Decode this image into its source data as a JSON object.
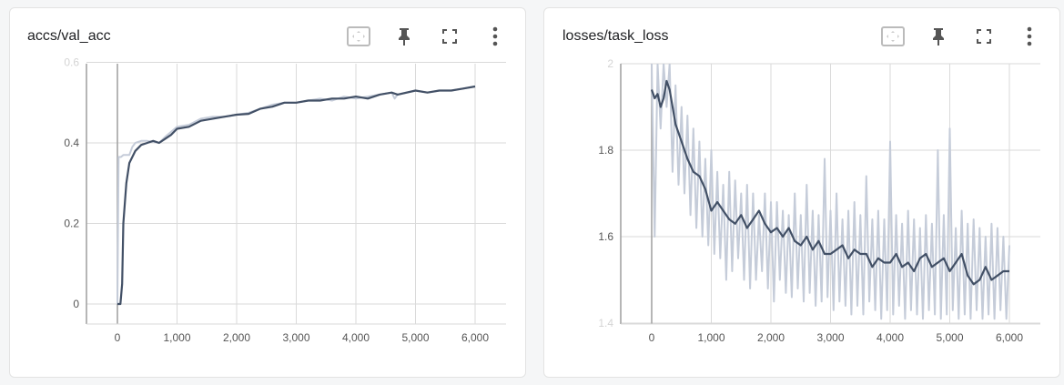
{
  "cards": [
    {
      "title": "accs/val_acc"
    },
    {
      "title": "losses/task_loss"
    }
  ],
  "icons": [
    "fit-domain-icon",
    "pin-icon",
    "fullscreen-icon",
    "more-vert-icon"
  ],
  "colors": {
    "smoothed": "#425066",
    "raw": "#c5ccd9",
    "grid": "#dadada",
    "axis": "#9e9e9e"
  },
  "chart_data": [
    {
      "type": "line",
      "title": "accs/val_acc",
      "xlim": [
        -520,
        6500
      ],
      "ylim": [
        -0.05,
        0.6
      ],
      "xticks": [
        0,
        1000,
        2000,
        3000,
        4000,
        5000,
        6000
      ],
      "xtick_labels": [
        "0",
        "1,000",
        "2,000",
        "3,000",
        "4,000",
        "5,000",
        "6,000"
      ],
      "yticks": [
        0,
        0.2,
        0.4,
        0.6
      ],
      "ytick_labels": [
        "0",
        "0.2",
        "0.4",
        "0.6"
      ],
      "series": [
        {
          "name": "raw",
          "x": [
            0,
            20,
            40,
            60,
            100,
            200,
            250,
            300,
            400,
            500,
            700,
            800,
            1000,
            1200,
            1400,
            1600,
            1800,
            2000,
            2200,
            2400,
            2600,
            2800,
            3000,
            3200,
            3400,
            3600,
            3800,
            4000,
            4200,
            4400,
            4600,
            4650,
            4700,
            5000,
            5200,
            5400,
            5600,
            5800,
            6000
          ],
          "y": [
            0,
            0.365,
            0.365,
            0.365,
            0.37,
            0.37,
            0.39,
            0.4,
            0.405,
            0.405,
            0.4,
            0.415,
            0.44,
            0.445,
            0.46,
            0.465,
            0.465,
            0.47,
            0.475,
            0.485,
            0.495,
            0.5,
            0.5,
            0.505,
            0.51,
            0.505,
            0.515,
            0.51,
            0.515,
            0.52,
            0.525,
            0.51,
            0.52,
            0.53,
            0.525,
            0.53,
            0.53,
            0.535,
            0.54
          ]
        },
        {
          "name": "smoothed",
          "x": [
            0,
            50,
            80,
            100,
            150,
            200,
            300,
            400,
            500,
            600,
            700,
            800,
            900,
            1000,
            1200,
            1400,
            1600,
            1800,
            2000,
            2200,
            2400,
            2600,
            2800,
            3000,
            3200,
            3400,
            3600,
            3800,
            4000,
            4200,
            4400,
            4600,
            4700,
            5000,
            5200,
            5400,
            5600,
            5800,
            6000
          ],
          "y": [
            0,
            0,
            0.05,
            0.2,
            0.3,
            0.35,
            0.38,
            0.395,
            0.4,
            0.405,
            0.4,
            0.41,
            0.42,
            0.435,
            0.44,
            0.455,
            0.46,
            0.465,
            0.47,
            0.472,
            0.485,
            0.49,
            0.5,
            0.5,
            0.505,
            0.505,
            0.51,
            0.51,
            0.515,
            0.51,
            0.52,
            0.525,
            0.52,
            0.53,
            0.525,
            0.53,
            0.53,
            0.535,
            0.54
          ]
        }
      ]
    },
    {
      "type": "line",
      "title": "losses/task_loss",
      "xlim": [
        -520,
        6500
      ],
      "ylim": [
        1.41,
        2.0
      ],
      "xticks": [
        0,
        1000,
        2000,
        3000,
        4000,
        5000,
        6000
      ],
      "xtick_labels": [
        "0",
        "1,000",
        "2,000",
        "3,000",
        "4,000",
        "5,000",
        "6,000"
      ],
      "yticks": [
        1.4,
        1.6,
        1.8,
        2.0
      ],
      "ytick_labels": [
        "1.4",
        "1.6",
        "1.8",
        "2"
      ],
      "series": [
        {
          "name": "raw",
          "x_step": 50,
          "y": [
            2.0,
            1.6,
            2.0,
            1.85,
            2.0,
            1.9,
            2.0,
            1.75,
            1.95,
            1.72,
            1.9,
            1.7,
            1.88,
            1.65,
            1.85,
            1.62,
            1.82,
            1.6,
            1.78,
            1.58,
            1.8,
            1.56,
            1.75,
            1.55,
            1.72,
            1.5,
            1.75,
            1.52,
            1.73,
            1.55,
            1.7,
            1.5,
            1.72,
            1.48,
            1.7,
            1.5,
            1.65,
            1.52,
            1.7,
            1.48,
            1.68,
            1.45,
            1.68,
            1.5,
            1.66,
            1.47,
            1.65,
            1.46,
            1.7,
            1.48,
            1.65,
            1.45,
            1.72,
            1.47,
            1.66,
            1.44,
            1.65,
            1.45,
            1.78,
            1.46,
            1.66,
            1.43,
            1.7,
            1.45,
            1.64,
            1.44,
            1.66,
            1.42,
            1.68,
            1.44,
            1.65,
            1.42,
            1.74,
            1.45,
            1.64,
            1.43,
            1.66,
            1.41,
            1.64,
            1.43,
            1.82,
            1.42,
            1.65,
            1.44,
            1.63,
            1.41,
            1.66,
            1.43,
            1.64,
            1.42,
            1.62,
            1.41,
            1.65,
            1.43,
            1.63,
            1.42,
            1.8,
            1.41,
            1.65,
            1.42,
            1.85,
            1.43,
            1.62,
            1.41,
            1.66,
            1.42,
            1.63,
            1.41,
            1.64,
            1.43,
            1.62,
            1.41,
            1.6,
            1.42,
            1.63,
            1.41,
            1.62,
            1.43,
            1.6,
            1.41,
            1.58
          ]
        },
        {
          "name": "smoothed",
          "x": [
            0,
            50,
            100,
            150,
            200,
            250,
            300,
            400,
            500,
            600,
            700,
            800,
            900,
            1000,
            1100,
            1200,
            1300,
            1400,
            1500,
            1600,
            1700,
            1800,
            1900,
            2000,
            2100,
            2200,
            2300,
            2400,
            2500,
            2600,
            2700,
            2800,
            2900,
            3000,
            3100,
            3200,
            3300,
            3400,
            3500,
            3600,
            3700,
            3800,
            3900,
            4000,
            4100,
            4200,
            4300,
            4400,
            4500,
            4600,
            4700,
            4800,
            4900,
            5000,
            5100,
            5200,
            5300,
            5400,
            5500,
            5600,
            5700,
            5800,
            5900,
            6000
          ],
          "y": [
            1.94,
            1.92,
            1.93,
            1.9,
            1.92,
            1.96,
            1.94,
            1.86,
            1.82,
            1.78,
            1.75,
            1.74,
            1.71,
            1.66,
            1.68,
            1.66,
            1.64,
            1.63,
            1.65,
            1.62,
            1.64,
            1.66,
            1.63,
            1.61,
            1.62,
            1.6,
            1.62,
            1.59,
            1.58,
            1.6,
            1.57,
            1.59,
            1.56,
            1.56,
            1.57,
            1.58,
            1.55,
            1.57,
            1.56,
            1.56,
            1.53,
            1.55,
            1.54,
            1.54,
            1.56,
            1.53,
            1.54,
            1.52,
            1.55,
            1.56,
            1.53,
            1.54,
            1.55,
            1.52,
            1.54,
            1.56,
            1.51,
            1.49,
            1.5,
            1.53,
            1.5,
            1.51,
            1.52,
            1.52
          ]
        }
      ]
    }
  ]
}
